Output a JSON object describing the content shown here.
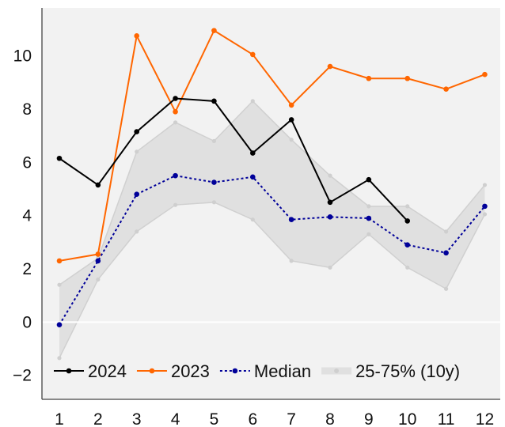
{
  "chart_data": {
    "type": "line",
    "title": "",
    "xlabel": "",
    "ylabel": "",
    "x": [
      1,
      2,
      3,
      4,
      5,
      6,
      7,
      8,
      9,
      10,
      11,
      12
    ],
    "xlim": [
      0.55,
      12.4
    ],
    "ylim": [
      -2.9,
      11.8
    ],
    "yticks": [
      -2,
      0,
      2,
      4,
      6,
      8,
      10
    ],
    "yticklabels": [
      "−2",
      "0",
      "2",
      "4",
      "6",
      "8",
      "10"
    ],
    "grid": false,
    "plot_background": "#f2f2f2",
    "zero_line": true,
    "legend_position": "bottom",
    "series": [
      {
        "name": "2024",
        "color": "#000000",
        "style": "solid",
        "values": [
          6.15,
          5.15,
          7.15,
          8.4,
          8.3,
          6.35,
          7.6,
          4.5,
          5.35,
          3.8,
          null,
          null
        ]
      },
      {
        "name": "2023",
        "color": "#ff6600",
        "style": "solid",
        "values": [
          2.3,
          2.55,
          10.75,
          7.9,
          10.95,
          10.05,
          8.15,
          9.6,
          9.15,
          9.15,
          8.75,
          9.3
        ]
      },
      {
        "name": "Median",
        "color": "#000099",
        "style": "dotted",
        "values": [
          -0.1,
          2.3,
          4.8,
          5.5,
          5.25,
          5.45,
          3.85,
          3.95,
          3.9,
          2.9,
          2.6,
          4.35
        ]
      }
    ],
    "band": {
      "name": "25-75% (10y)",
      "color": "#e0e0e0",
      "edge_color": "#d0d0d0",
      "lower": [
        -1.35,
        1.6,
        3.4,
        4.4,
        4.5,
        3.85,
        2.3,
        2.05,
        3.3,
        2.05,
        1.25,
        4.05
      ],
      "upper": [
        1.4,
        2.4,
        6.4,
        7.5,
        6.8,
        8.3,
        6.85,
        5.5,
        4.35,
        4.35,
        3.4,
        5.15
      ]
    }
  }
}
